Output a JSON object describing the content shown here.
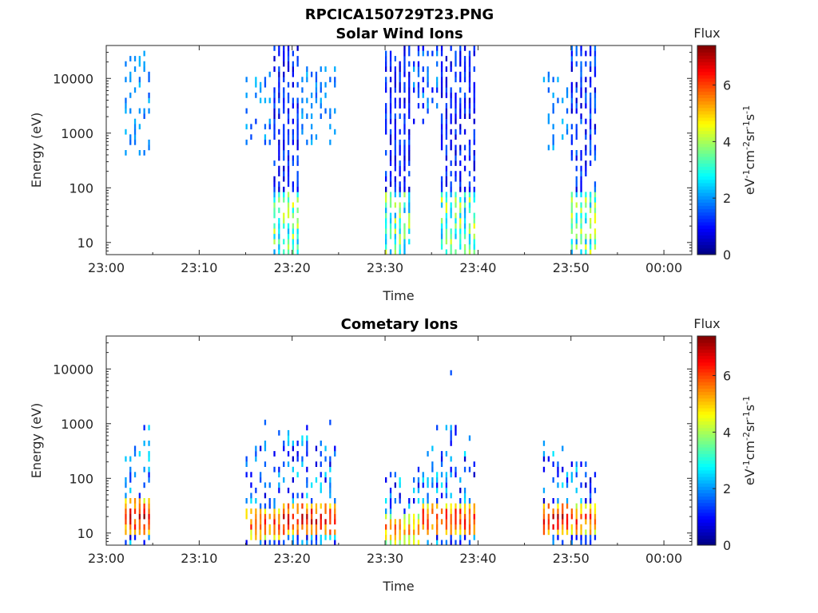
{
  "figure": {
    "title": "RPCICA150729T23.PNG"
  },
  "chart_data": [
    {
      "type": "heatmap",
      "title": "Solar Wind Ions",
      "xlabel": "Time",
      "ylabel": "Energy (eV)",
      "yscale": "log",
      "ylim": [
        6,
        40000
      ],
      "xlim": [
        "23:00",
        "00:03"
      ],
      "x_ticks": [
        "23:00",
        "23:10",
        "23:20",
        "23:30",
        "23:40",
        "23:50",
        "00:00"
      ],
      "y_ticks": [
        "10",
        "100",
        "1000",
        "10000"
      ],
      "colorbar": {
        "label": "Flux",
        "unit_label": "eV-1cm-2sr-1s-1",
        "range": [
          0,
          7.4
        ],
        "ticks": [
          "0",
          "2",
          "4",
          "6"
        ],
        "colormap": "jet"
      },
      "active_intervals": [
        {
          "start": "23:02",
          "end": "23:05",
          "emin": 300,
          "emax": 30000,
          "fmin": 1.5,
          "fmax": 2.4,
          "density": 0.35
        },
        {
          "start": "23:15",
          "end": "23:18",
          "emin": 600,
          "emax": 20000,
          "fmin": 1.3,
          "fmax": 2.4,
          "density": 0.3
        },
        {
          "start": "23:18",
          "end": "23:21",
          "emin": 6,
          "emax": 36000,
          "fmin": 0.5,
          "fmax": 1.6,
          "density": 0.7
        },
        {
          "start": "23:21",
          "end": "23:25",
          "emin": 600,
          "emax": 15000,
          "fmin": 1.5,
          "fmax": 2.4,
          "density": 0.3
        },
        {
          "start": "23:30",
          "end": "23:33",
          "emin": 6,
          "emax": 36000,
          "fmin": 0.5,
          "fmax": 1.6,
          "density": 0.7
        },
        {
          "start": "23:33",
          "end": "23:36",
          "emin": 1500,
          "emax": 36000,
          "fmin": 0.8,
          "fmax": 2.2,
          "density": 0.5
        },
        {
          "start": "23:36",
          "end": "23:40",
          "emin": 6,
          "emax": 36000,
          "fmin": 0.5,
          "fmax": 1.6,
          "density": 0.7
        },
        {
          "start": "23:47",
          "end": "23:50",
          "emin": 500,
          "emax": 12000,
          "fmin": 1.5,
          "fmax": 2.4,
          "density": 0.3
        },
        {
          "start": "23:50",
          "end": "23:53",
          "emin": 6,
          "emax": 36000,
          "fmin": 0.5,
          "fmax": 1.8,
          "density": 0.7
        }
      ],
      "low_energy_band": {
        "emin": 6,
        "emax": 80,
        "fmin": 2.0,
        "fmax": 4.6
      }
    },
    {
      "type": "heatmap",
      "title": "Cometary Ions",
      "xlabel": "Time",
      "ylabel": "Energy (eV)",
      "yscale": "log",
      "ylim": [
        6,
        40000
      ],
      "xlim": [
        "23:00",
        "00:03"
      ],
      "x_ticks": [
        "23:00",
        "23:10",
        "23:20",
        "23:30",
        "23:40",
        "23:50",
        "00:00"
      ],
      "y_ticks": [
        "10",
        "100",
        "1000",
        "10000"
      ],
      "colorbar": {
        "label": "Flux",
        "unit_label": "eV-1cm-2sr-1s-1",
        "range": [
          0,
          7.4
        ],
        "ticks": [
          "0",
          "2",
          "4",
          "6"
        ],
        "colormap": "jet"
      },
      "active_intervals": [
        {
          "start": "23:02",
          "end": "23:05",
          "emin": 6,
          "emax": 1300,
          "peak_energy": 20,
          "peak_flux": 6.8
        },
        {
          "start": "23:15",
          "end": "23:19",
          "emin": 6,
          "emax": 1100,
          "peak_energy": 15,
          "peak_flux": 6.0
        },
        {
          "start": "23:19",
          "end": "23:25",
          "emin": 6,
          "emax": 1200,
          "peak_energy": 18,
          "peak_flux": 6.8
        },
        {
          "start": "23:30",
          "end": "23:34",
          "emin": 6,
          "emax": 150,
          "peak_energy": 12,
          "peak_flux": 5.5
        },
        {
          "start": "23:34",
          "end": "23:40",
          "emin": 6,
          "emax": 1000,
          "peak_energy": 18,
          "peak_flux": 6.5
        },
        {
          "start": "23:47",
          "end": "23:50",
          "emin": 6,
          "emax": 500,
          "peak_energy": 18,
          "peak_flux": 6.8
        },
        {
          "start": "23:50",
          "end": "23:53",
          "emin": 6,
          "emax": 200,
          "peak_energy": 18,
          "peak_flux": 6.2
        }
      ],
      "isolated_points": [
        {
          "time": "23:37",
          "energy": 8500,
          "flux": 1.5
        }
      ]
    }
  ]
}
